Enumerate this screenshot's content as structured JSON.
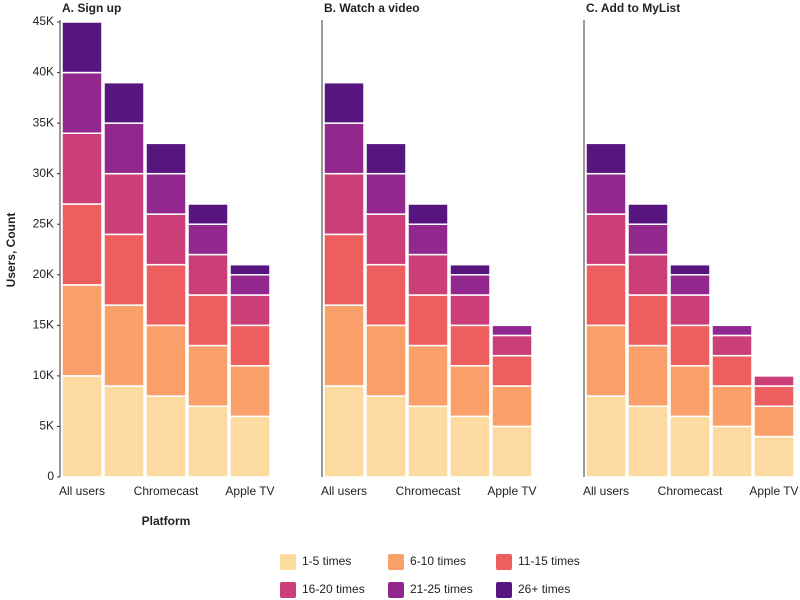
{
  "chart_data": [
    {
      "type": "bar",
      "stacked": true,
      "title": "A. Sign up",
      "y_label": "Users, Count",
      "x_label": "Platform",
      "categories": [
        "All users",
        null,
        "Chromecast",
        null,
        "Apple TV"
      ],
      "ylim": [
        0,
        45000
      ],
      "yticks": [
        0,
        {
          "value": 5000,
          "label": "5K"
        },
        {
          "value": 10000,
          "label": "10K"
        },
        {
          "value": 15000,
          "label": "15K"
        },
        {
          "value": 20000,
          "label": "20K"
        },
        {
          "value": 25000,
          "label": "25K"
        },
        {
          "value": 30000,
          "label": "30K"
        },
        {
          "value": 35000,
          "label": "35K"
        },
        {
          "value": 40000,
          "label": "40K"
        },
        {
          "value": 45000,
          "label": "45K"
        }
      ],
      "series": [
        {
          "name": "1-5 times",
          "color": "#fddba0",
          "values": [
            10000,
            9000,
            8000,
            7000,
            6000
          ]
        },
        {
          "name": "6-10 times",
          "color": "#f9a06b",
          "values": [
            9000,
            8000,
            7000,
            6000,
            5000
          ]
        },
        {
          "name": "11-15 times",
          "color": "#ef5e5e",
          "values": [
            8000,
            7000,
            6000,
            5000,
            4000
          ]
        },
        {
          "name": "16-20 times",
          "color": "#cb3e78",
          "values": [
            7000,
            6000,
            5000,
            4000,
            3000
          ]
        },
        {
          "name": "21-25 times",
          "color": "#92288e",
          "values": [
            6000,
            5000,
            4000,
            3000,
            2000
          ]
        },
        {
          "name": "26+ times",
          "color": "#57167f",
          "values": [
            5000,
            4000,
            3000,
            2000,
            1000
          ]
        }
      ]
    },
    {
      "type": "bar",
      "stacked": true,
      "title": "B. Watch a video",
      "categories": [
        "All users",
        null,
        "Chromecast",
        null,
        "Apple TV"
      ],
      "ylim": [
        0,
        45000
      ],
      "series": [
        {
          "values": [
            9000,
            8000,
            7000,
            6000,
            5000
          ]
        },
        {
          "values": [
            8000,
            7000,
            6000,
            5000,
            4000
          ]
        },
        {
          "values": [
            7000,
            6000,
            5000,
            4000,
            3000
          ]
        },
        {
          "values": [
            6000,
            5000,
            4000,
            3000,
            2000
          ]
        },
        {
          "values": [
            5000,
            4000,
            3000,
            2000,
            1000
          ]
        },
        {
          "values": [
            4000,
            3000,
            2000,
            1000,
            0
          ]
        }
      ]
    },
    {
      "type": "bar",
      "stacked": true,
      "title": "C. Add to MyList",
      "categories": [
        "All users",
        null,
        "Chromecast",
        null,
        "Apple TV"
      ],
      "ylim": [
        0,
        45000
      ],
      "series": [
        {
          "values": [
            8000,
            7000,
            6000,
            5000,
            4000
          ]
        },
        {
          "values": [
            7000,
            6000,
            5000,
            4000,
            3000
          ]
        },
        {
          "values": [
            6000,
            5000,
            4000,
            3000,
            2000
          ]
        },
        {
          "values": [
            5000,
            4000,
            3000,
            2000,
            1000
          ]
        },
        {
          "values": [
            4000,
            3000,
            2000,
            1000,
            0
          ]
        },
        {
          "values": [
            3000,
            2000,
            1000,
            0,
            0
          ]
        }
      ]
    }
  ]
}
